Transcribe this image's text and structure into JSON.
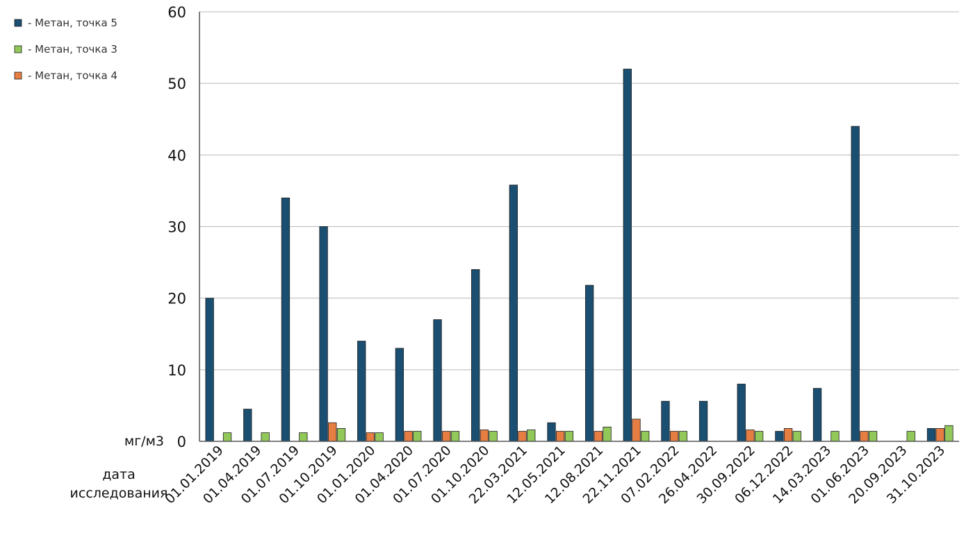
{
  "chart_data": {
    "type": "bar",
    "ylim": [
      0,
      60
    ],
    "yticks": [
      0,
      10,
      20,
      30,
      40,
      50,
      60
    ],
    "grid": true,
    "legend_position": "top-left",
    "unit_label": "мг/м3",
    "xlabel": "дата исследования",
    "categories": [
      "01.01.2019",
      "01.04.2019",
      "01.07.2019",
      "01.10.2019",
      "01.01.2020",
      "01.04.2020",
      "01.07.2020",
      "01.10.2020",
      "22.03.2021",
      "12.05.2021",
      "12.08.2021",
      "22.11.2021",
      "07.02.2022",
      "26.04.2022",
      "30.09.2022",
      "06.12.2022",
      "14.03.2023",
      "01.06.2023",
      "20.09.2023",
      "31.10.2023"
    ],
    "series": [
      {
        "name": "- Метан, точка 5",
        "color": "#1b4f72",
        "values": [
          20,
          4.5,
          34,
          30,
          14,
          13,
          17,
          24,
          35.8,
          2.6,
          21.8,
          52,
          5.6,
          5.6,
          8,
          1.4,
          7.4,
          44,
          null,
          1.8
        ]
      },
      {
        "name": "- Метан, точка 4",
        "color": "#e67e43",
        "values": [
          null,
          null,
          null,
          2.6,
          1.2,
          1.4,
          1.4,
          1.6,
          1.4,
          1.4,
          1.4,
          3.1,
          1.4,
          null,
          1.6,
          1.8,
          null,
          1.4,
          null,
          1.8
        ]
      },
      {
        "name": "- Метан, точка 3",
        "color": "#92c85a",
        "values": [
          1.2,
          1.2,
          1.2,
          1.8,
          1.2,
          1.4,
          1.4,
          1.4,
          1.6,
          1.4,
          2,
          1.4,
          1.4,
          null,
          1.4,
          1.4,
          1.4,
          1.4,
          1.4,
          2.2
        ]
      }
    ],
    "legend_order": [
      "- Метан, точка 5",
      "- Метан, точка 3",
      "- Метан, точка 4"
    ]
  }
}
